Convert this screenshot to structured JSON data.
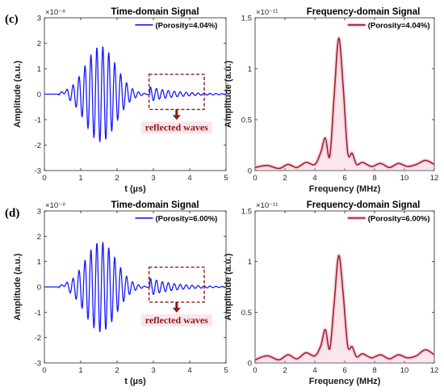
{
  "colors": {
    "time_line": "#1a1aff",
    "freq_line": "#a02323",
    "freq_shade": "#f4b6cf",
    "annotation": "#8b1a1a",
    "annotation_bg": "#f9d4e0",
    "grid_frame": "#262626"
  },
  "panels": [
    {
      "label": "(c)"
    },
    {
      "label": "(d)"
    }
  ],
  "annotation_text": "reflected waves",
  "chart_data": [
    {
      "type": "line",
      "title": "Time-domain Signal",
      "xlabel": "t (µs)",
      "ylabel": "Amplitude (a.u.)",
      "y_exponent_label": "×10⁻⁸",
      "xlim": [
        0,
        5
      ],
      "ylim": [
        -3,
        3
      ],
      "xticks": [
        "0",
        "1",
        "2",
        "3",
        "4",
        "5"
      ],
      "yticks": [
        "-3",
        "-2",
        "-1",
        "0",
        "1",
        "2",
        "3"
      ],
      "legend_position": "top-right",
      "series": [
        {
          "name": "(Porosity=4.04%)",
          "signal": {
            "f": 6.1,
            "peak": 1.88,
            "t0": 1.55,
            "sigma": 0.42,
            "tail": 0.28,
            "tail_decay": 0.75,
            "tail_start": 2.9
          }
        }
      ]
    },
    {
      "type": "area",
      "title": "Frequency-domain Signal",
      "xlabel": "Frequency (MHz)",
      "ylabel": "Amplitude (a.u.)",
      "y_exponent_label": "×10⁻¹¹",
      "xlim": [
        0,
        12
      ],
      "ylim": [
        0,
        1.5
      ],
      "xticks": [
        "0",
        "2",
        "4",
        "6",
        "8",
        "10",
        "12"
      ],
      "yticks": [
        "0",
        "0.5",
        "1",
        "1.5"
      ],
      "legend_position": "top-right",
      "series": [
        {
          "name": "(Porosity=4.04%)",
          "x": [
            0,
            0.8,
            1.6,
            2.2,
            2.8,
            3.4,
            4.0,
            4.4,
            4.7,
            5.0,
            5.3,
            5.6,
            5.9,
            6.2,
            6.5,
            6.8,
            7.2,
            7.8,
            8.4,
            9.0,
            9.6,
            10.2,
            10.8,
            11.4,
            12.0
          ],
          "y": [
            0.03,
            0.05,
            0.02,
            0.06,
            0.03,
            0.08,
            0.06,
            0.18,
            0.32,
            0.14,
            0.75,
            1.3,
            0.82,
            0.18,
            0.17,
            0.06,
            0.08,
            0.04,
            0.07,
            0.03,
            0.07,
            0.04,
            0.06,
            0.1,
            0.06
          ]
        }
      ]
    },
    {
      "type": "line",
      "title": "Time-domain Signal",
      "xlabel": "t (µs)",
      "ylabel": "Amplitude (a.u.)",
      "y_exponent_label": "×10⁻⁸",
      "xlim": [
        0,
        5
      ],
      "ylim": [
        -3,
        3
      ],
      "xticks": [
        "0",
        "1",
        "2",
        "3",
        "4",
        "5"
      ],
      "yticks": [
        "-3",
        "-2",
        "-1",
        "0",
        "1",
        "2",
        "3"
      ],
      "legend_position": "top-right",
      "series": [
        {
          "name": "(Porosity=6.00%)",
          "signal": {
            "f": 6.1,
            "peak": 1.78,
            "t0": 1.55,
            "sigma": 0.42,
            "tail": 0.34,
            "tail_decay": 0.7,
            "tail_start": 2.9
          }
        }
      ]
    },
    {
      "type": "area",
      "title": "Frequency-domain Signal",
      "xlabel": "Frequency (MHz)",
      "ylabel": "Amplitude (a.u.)",
      "y_exponent_label": "×10⁻¹¹",
      "xlim": [
        0,
        12
      ],
      "ylim": [
        0,
        1.5
      ],
      "xticks": [
        "0",
        "2",
        "4",
        "6",
        "8",
        "10",
        "12"
      ],
      "yticks": [
        "0",
        "0.5",
        "1",
        "1.5"
      ],
      "legend_position": "top-right",
      "series": [
        {
          "name": "(Porosity=6.00%)",
          "x": [
            0,
            0.8,
            1.6,
            2.2,
            2.8,
            3.4,
            4.0,
            4.4,
            4.7,
            5.0,
            5.3,
            5.6,
            5.9,
            6.2,
            6.5,
            6.8,
            7.2,
            7.8,
            8.4,
            9.0,
            9.6,
            10.2,
            10.8,
            11.4,
            12.0
          ],
          "y": [
            0.03,
            0.07,
            0.03,
            0.08,
            0.04,
            0.1,
            0.07,
            0.17,
            0.33,
            0.14,
            0.6,
            1.06,
            0.68,
            0.17,
            0.16,
            0.06,
            0.09,
            0.05,
            0.08,
            0.04,
            0.08,
            0.05,
            0.07,
            0.13,
            0.08
          ]
        }
      ]
    }
  ]
}
